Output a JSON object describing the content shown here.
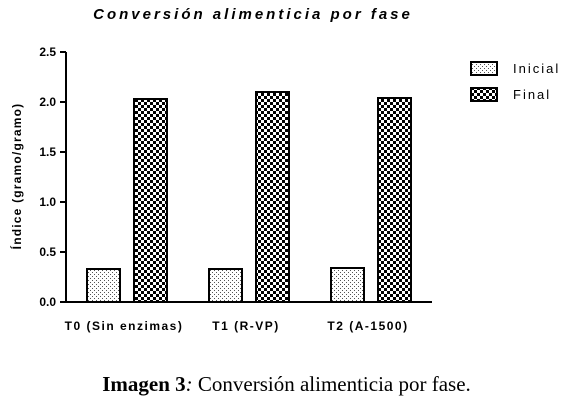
{
  "chart_data": {
    "type": "bar",
    "title": "Conversión alimenticia por fase",
    "xlabel": "",
    "ylabel": "Índice (gramo/gramo)",
    "categories": [
      "T0 (Sin enzimas)",
      "T1 (R-VP)",
      "T2 (A-1500)"
    ],
    "series": [
      {
        "name": "Inicial",
        "values": [
          0.33,
          0.33,
          0.34
        ],
        "pattern": "dotted"
      },
      {
        "name": "Final",
        "values": [
          2.03,
          2.1,
          2.04
        ],
        "pattern": "checkered"
      }
    ],
    "ylim": [
      0,
      2.5
    ],
    "yticks": [
      "0.0",
      "0.5",
      "1.0",
      "1.5",
      "2.0",
      "2.5"
    ],
    "grid": false,
    "legend": "right"
  },
  "caption": {
    "label": "Imagen 3",
    "separator": ":",
    "text": " Conversión alimenticia por fase."
  },
  "colors": {
    "bar_stroke": "#000000",
    "pattern_dark": "#000000",
    "pattern_light": "#ffffff"
  }
}
